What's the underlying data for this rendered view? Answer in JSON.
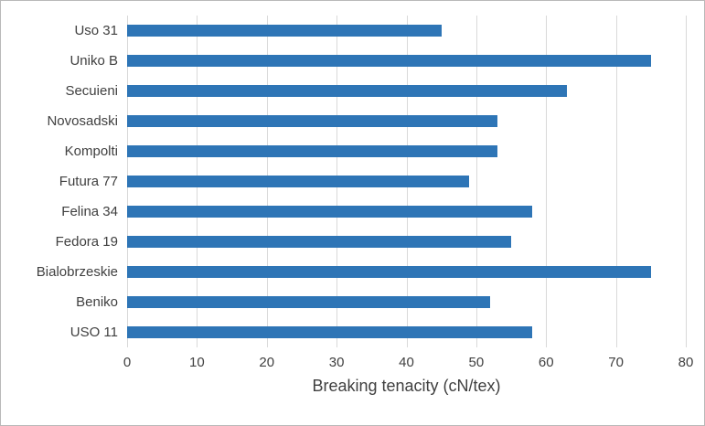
{
  "figure": {
    "background": "#ffffff",
    "border_color": "#b9b9b9"
  },
  "chart_data": {
    "type": "bar",
    "orientation": "horizontal",
    "title": "",
    "xlabel": "Breaking tenacity (cN/tex)",
    "ylabel": "",
    "categories": [
      "Uso 31",
      "Uniko B",
      "Secuieni",
      "Novosadski",
      "Kompolti",
      "Futura 77",
      "Felina 34",
      "Fedora 19",
      "Bialobrzeskie",
      "Beniko",
      "USO 11"
    ],
    "values": [
      45,
      75,
      63,
      53,
      53,
      49,
      58,
      55,
      75,
      52,
      58
    ],
    "xlim": [
      0,
      80
    ],
    "x_ticks": [
      0,
      10,
      20,
      30,
      40,
      50,
      60,
      70,
      80
    ],
    "grid": "vertical",
    "legend": "none",
    "bar_color": "#2e75b6",
    "gridline_color": "#d9d9d9",
    "text_color": "#404040"
  }
}
